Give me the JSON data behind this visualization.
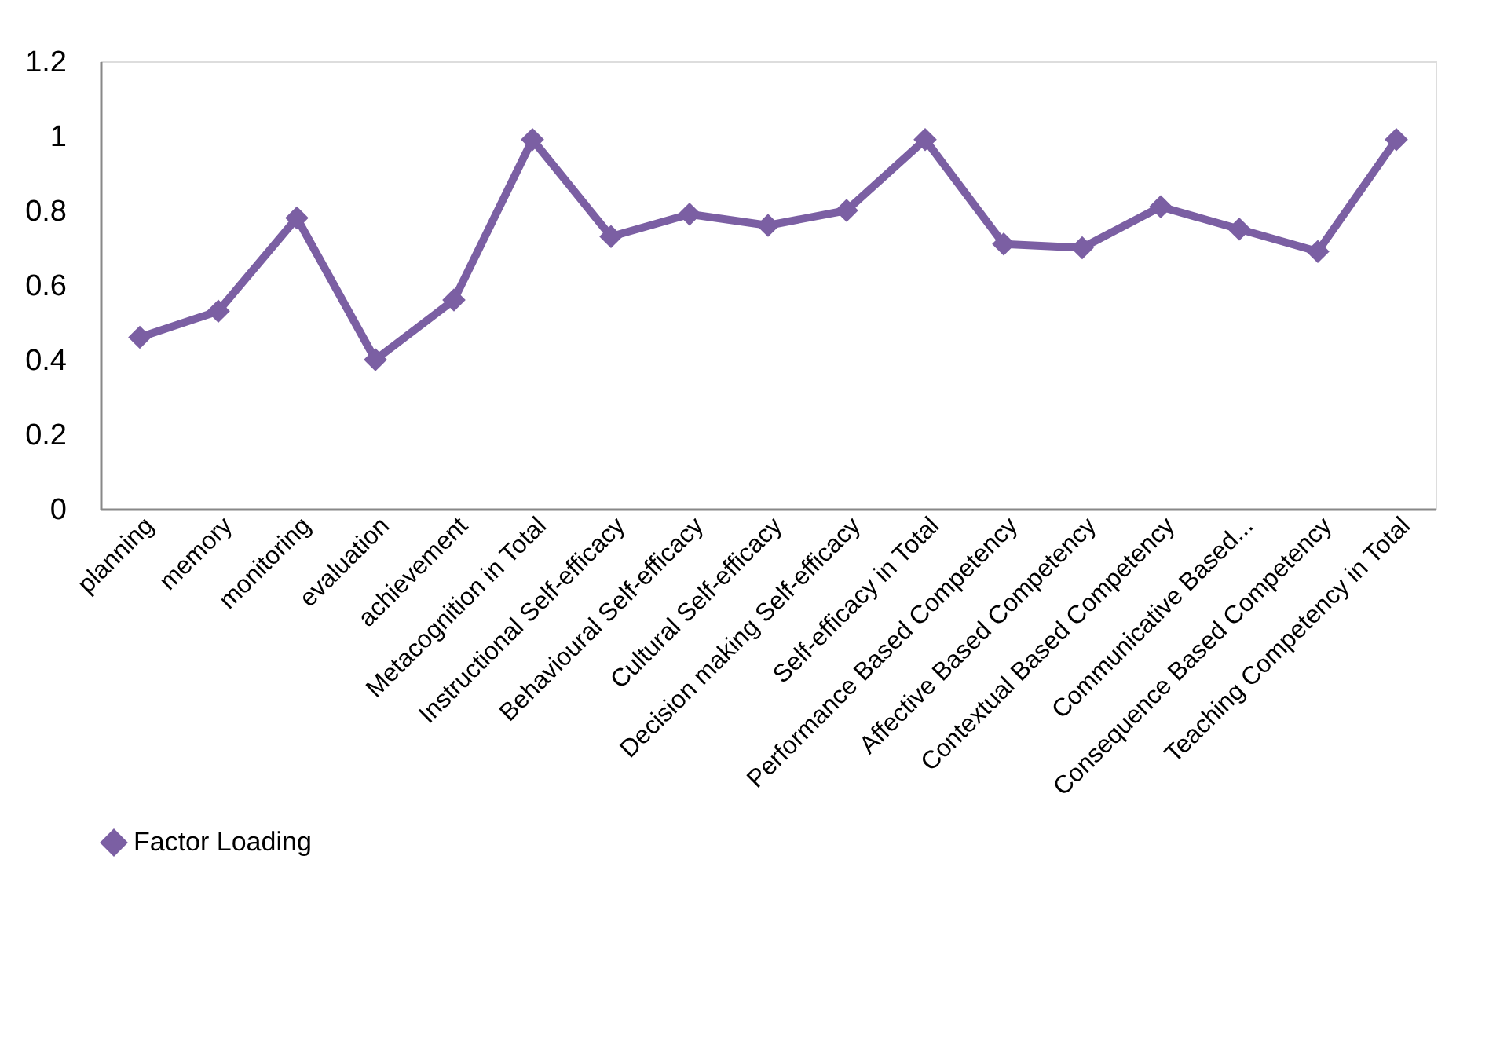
{
  "chart_data": {
    "type": "line",
    "categories": [
      "planning",
      "memory",
      "monitoring",
      "evaluation",
      "achievement",
      "Metacognition in Total",
      "Instructional Self-efficacy",
      "Behavioural Self-efficacy",
      "Cultural Self-efficacy",
      "Decision making Self-efficacy",
      "Self-efficacy  in Total",
      "Performance Based Competency",
      "Affective Based Competency",
      "Contextual Based Competency",
      "Communicative Based...",
      "Consequence Based Competency",
      "Teaching Competency in Total"
    ],
    "series": [
      {
        "name": "Factor Loading",
        "color": "#7b5fa3",
        "values": [
          0.46,
          0.53,
          0.78,
          0.4,
          0.56,
          0.99,
          0.73,
          0.79,
          0.76,
          0.8,
          0.99,
          0.71,
          0.7,
          0.81,
          0.75,
          0.69,
          0.99
        ]
      }
    ],
    "ylim": [
      0,
      1.2
    ],
    "yticks": [
      0,
      0.2,
      0.4,
      0.6,
      0.8,
      1,
      1.2
    ],
    "grid": false,
    "legend": "bottom",
    "marker": "diamond",
    "line_style": "solid"
  }
}
